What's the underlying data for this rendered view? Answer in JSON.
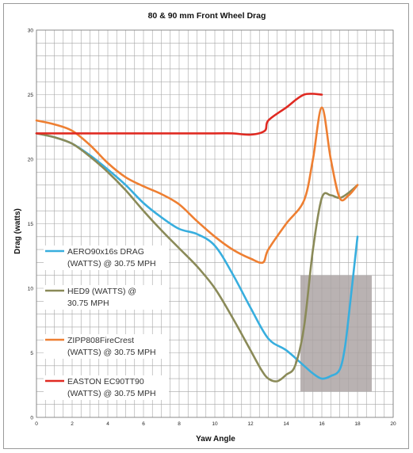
{
  "chart_data": {
    "type": "line",
    "title": "80 & 90 mm Front Wheel Drag",
    "xlabel": "Yaw Angle",
    "ylabel": "Drag (watts)",
    "xlim": [
      0,
      20
    ],
    "ylim": [
      0,
      30
    ],
    "x_ticks": [
      0,
      2,
      4,
      6,
      8,
      10,
      12,
      14,
      16,
      18,
      20
    ],
    "y_ticks": [
      0,
      5,
      10,
      15,
      20,
      25,
      30
    ],
    "grid": true,
    "legend_position": "left",
    "highlight_region": {
      "x": [
        14.8,
        18.8
      ],
      "y": [
        2,
        11
      ],
      "color": "#aaa1a1"
    },
    "series": [
      {
        "name_lines": [
          "AERO90x16s DRAG",
          "(WATTS) @ 30.75 MPH"
        ],
        "color": "#38aede",
        "x": [
          0,
          1,
          2,
          3,
          4,
          5,
          6,
          7,
          8,
          9,
          10,
          11,
          12,
          13,
          14,
          15,
          15.5,
          16,
          16.5,
          17,
          17.3,
          17.6,
          18
        ],
        "y": [
          22,
          21.7,
          21.2,
          20.3,
          19.2,
          18,
          16.6,
          15.5,
          14.6,
          14.2,
          13.3,
          11.1,
          8.5,
          6.1,
          5.2,
          4,
          3.4,
          3,
          3.2,
          3.7,
          5.5,
          9,
          14
        ]
      },
      {
        "name_lines": [
          "HED9 (WATTS) @",
          "30.75 MPH"
        ],
        "color": "#8a8a58",
        "x": [
          0,
          1,
          2,
          3,
          4,
          5,
          6,
          7,
          8,
          9,
          10,
          11,
          12,
          12.6,
          13,
          13.5,
          14,
          14.5,
          15,
          15.5,
          16,
          16.5,
          17,
          17.5,
          18
        ],
        "y": [
          22,
          21.7,
          21.2,
          20.2,
          19,
          17.6,
          16,
          14.5,
          13.1,
          11.7,
          10,
          7.7,
          5.2,
          3.7,
          3,
          2.8,
          3.3,
          4,
          7,
          13,
          17,
          17.2,
          17,
          17.4,
          18
        ]
      },
      {
        "name_lines": [
          "ZIPP808FireCrest",
          "(WATTS) @ 30.75 MPH"
        ],
        "color": "#ee7f32",
        "x": [
          0,
          1,
          2,
          3,
          4,
          5,
          6,
          7,
          8,
          9,
          10,
          11,
          12,
          12.7,
          13,
          14,
          15,
          15.5,
          16,
          16.5,
          17,
          17.5,
          18
        ],
        "y": [
          23,
          22.7,
          22.2,
          21.1,
          19.7,
          18.6,
          17.9,
          17.3,
          16.5,
          15.2,
          14,
          13,
          12.3,
          12,
          13,
          15,
          16.8,
          20,
          24,
          20,
          17,
          17.2,
          18
        ]
      },
      {
        "name_lines": [
          "EASTON EC90TT90",
          "(WATTS) @ 30.75 MPH"
        ],
        "color": "#e02a22",
        "x": [
          0,
          2,
          4,
          6,
          8,
          10,
          11,
          12,
          12.8,
          13,
          14,
          15,
          16
        ],
        "y": [
          22,
          22,
          22,
          22,
          22,
          22,
          22,
          21.9,
          22.2,
          23,
          24,
          25,
          25
        ]
      }
    ]
  }
}
